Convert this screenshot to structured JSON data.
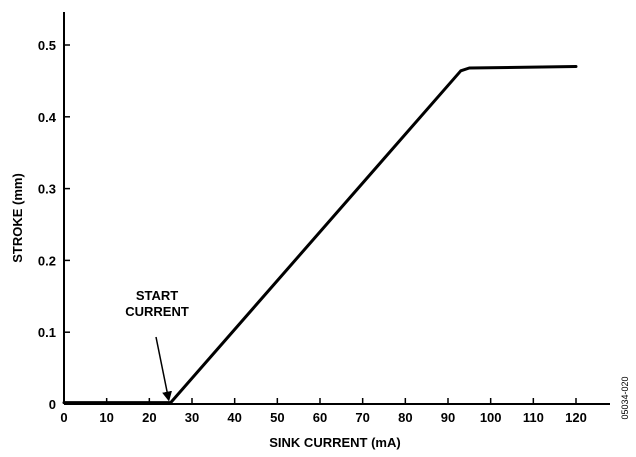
{
  "chart_data": {
    "type": "line",
    "title": "",
    "xlabel": "SINK CURRENT (mA)",
    "ylabel": "STROKE (mm)",
    "xlim": [
      0,
      128
    ],
    "ylim": [
      0,
      0.53
    ],
    "x_ticks": [
      0,
      10,
      20,
      30,
      40,
      50,
      60,
      70,
      80,
      90,
      100,
      110,
      120
    ],
    "y_ticks": [
      0,
      0.1,
      0.2,
      0.3,
      0.4,
      0.5
    ],
    "y_tick_labels": [
      "0",
      "0.1",
      "0.2",
      "0.3",
      "0.4",
      "0.5"
    ],
    "grid": false,
    "series": [
      {
        "name": "",
        "color": "#000000",
        "x": [
          0,
          25,
          93,
          95,
          120
        ],
        "y": [
          0.002,
          0.002,
          0.464,
          0.468,
          0.47
        ]
      }
    ],
    "annotations": [
      {
        "lines": [
          "START",
          "CURRENT"
        ],
        "target": {
          "x": 25,
          "y": 0.002
        }
      }
    ],
    "figure_id": "05034-020"
  }
}
